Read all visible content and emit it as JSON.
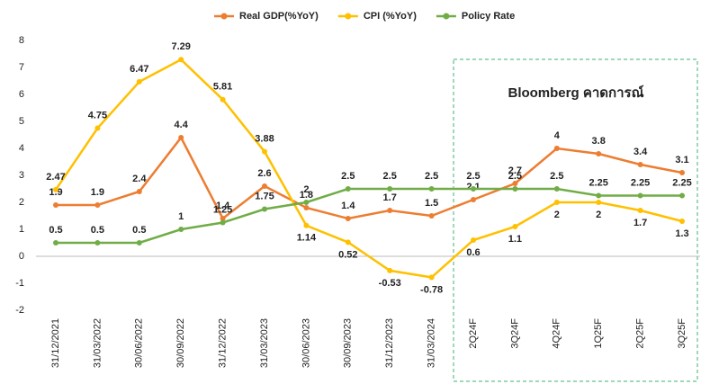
{
  "chart_data": {
    "type": "line",
    "categories": [
      "31/12/2021",
      "31/03/2022",
      "30/06/2022",
      "30/09/2022",
      "31/12/2022",
      "31/03/2023",
      "30/06/2023",
      "30/09/2023",
      "31/12/2023",
      "31/03/2024",
      "2Q24F",
      "3Q24F",
      "4Q24F",
      "1Q25F",
      "2Q25F",
      "3Q25F"
    ],
    "series": [
      {
        "name": "Real GDP(%YoY)",
        "color": "#ed7d31",
        "values": [
          1.9,
          1.9,
          2.4,
          4.4,
          1.4,
          2.6,
          1.8,
          1.4,
          1.7,
          1.5,
          2.1,
          2.7,
          4,
          3.8,
          3.4,
          3.1
        ]
      },
      {
        "name": "CPI (%YoY)",
        "color": "#ffc000",
        "values": [
          2.47,
          4.75,
          6.47,
          7.29,
          5.81,
          3.88,
          1.14,
          0.52,
          -0.53,
          -0.78,
          0.6,
          1.1,
          2,
          2,
          1.7,
          1.3
        ]
      },
      {
        "name": "Policy Rate",
        "color": "#70ad47",
        "values": [
          0.5,
          0.5,
          0.5,
          1,
          1.25,
          1.75,
          2,
          2.5,
          2.5,
          2.5,
          2.5,
          2.5,
          2.5,
          2.25,
          2.25,
          2.25
        ]
      }
    ],
    "annotation": "Bloomberg คาดการณ์",
    "ylim": [
      -2,
      8
    ],
    "yticks": [
      -2,
      -1,
      0,
      1,
      2,
      3,
      4,
      5,
      6,
      7,
      8
    ],
    "grid": false
  }
}
